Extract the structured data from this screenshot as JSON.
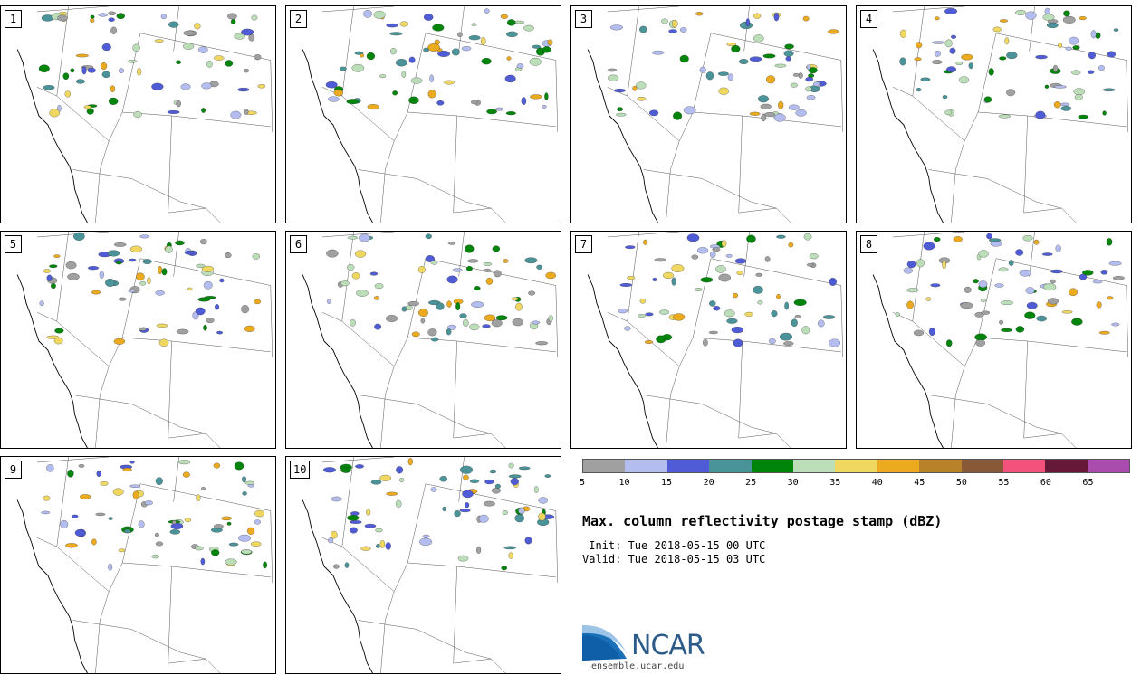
{
  "panels": [
    {
      "number": "1"
    },
    {
      "number": "2"
    },
    {
      "number": "3"
    },
    {
      "number": "4"
    },
    {
      "number": "5"
    },
    {
      "number": "6"
    },
    {
      "number": "7"
    },
    {
      "number": "8"
    },
    {
      "number": "9"
    },
    {
      "number": "10"
    }
  ],
  "colorbar": {
    "colors": [
      "#a0a0a0",
      "#b4bdf0",
      "#4f5cd6",
      "#4a9399",
      "#00850a",
      "#bbdeb9",
      "#f0d860",
      "#ecaa1e",
      "#b8822a",
      "#895937",
      "#f2527c",
      "#661839",
      "#aa4bae"
    ],
    "labels": [
      "5",
      "10",
      "15",
      "20",
      "25",
      "30",
      "35",
      "40",
      "45",
      "50",
      "55",
      "60",
      "65"
    ]
  },
  "title": "Max. column reflectivity postage stamp (dBZ)",
  "init_line": " Init: Tue 2018-05-15 00 UTC",
  "valid_line": "Valid: Tue 2018-05-15 03 UTC",
  "logo": {
    "text": "NCAR",
    "url": "ensemble.ucar.edu"
  }
}
